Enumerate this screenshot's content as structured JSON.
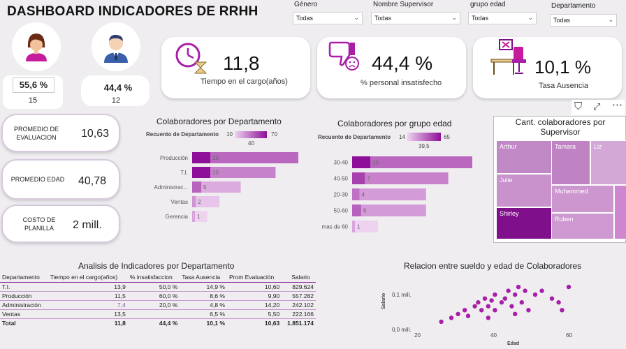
{
  "title": "DASHBOARD INDICADORES DE RRHH",
  "slicers": [
    {
      "label": "Género",
      "value": "Todas"
    },
    {
      "label": "Nombre Supervisor",
      "value": "Todas"
    },
    {
      "label": "grupo edad",
      "value": "Todas"
    },
    {
      "label": "Departamento",
      "value": "Todas"
    }
  ],
  "gender": {
    "female": {
      "pct": "55,6 %",
      "count": "15"
    },
    "male": {
      "pct": "44,4 %",
      "count": "12"
    }
  },
  "kpis": [
    {
      "value": "11,8",
      "label": "Tiempo en el cargo(años)",
      "icon": "hourglass-clock-icon"
    },
    {
      "value": "44,4 %",
      "label": "% personal insatisfecho",
      "icon": "thumbs-down-icon"
    },
    {
      "value": "10,1 %",
      "label": "Tasa Ausencia",
      "icon": "empty-desk-icon"
    }
  ],
  "side_kpis": [
    {
      "label": "PROMEDIO DE EVALUACION",
      "value": "10,63"
    },
    {
      "label": "PROMEDIO EDAD",
      "value": "40,78"
    },
    {
      "label": "COSTO DE PLANILLA",
      "value": "2 mill."
    }
  ],
  "dept_chart": {
    "title": "Colaboradores por Departamento",
    "legend_title": "Recuento de Departamento",
    "legend_min": "10",
    "legend_mid": "40",
    "legend_max": "70"
  },
  "age_chart": {
    "title": "Colaboradores por grupo edad",
    "legend_title": "Recuento de Departamento",
    "legend_min": "14",
    "legend_mid": "39,5",
    "legend_max": "65"
  },
  "treemap": {
    "title": "Cant. colaboradores por Supervisor",
    "cells": [
      "Arthur",
      "Tamara",
      "Liz",
      "Julie",
      "Muhammed",
      "Shirley",
      "Ruben"
    ]
  },
  "table": {
    "title": "Analisis de Indicadores por Departamento",
    "headers": [
      "Departamento",
      "Tiempo en el cargo(años)",
      "% insatisfaccion",
      "Tasa Ausencia",
      "Prom Evaluación",
      "Salario"
    ],
    "rows": [
      [
        "T.I.",
        "13,9",
        "50,0 %",
        "14,9 %",
        "10,60",
        "829.624"
      ],
      [
        "Producción",
        "11,5",
        "60,0 %",
        "8,6 %",
        "9,90",
        "557.282"
      ],
      [
        "Administración",
        "7,4",
        "20,0 %",
        "4,8 %",
        "14,20",
        "242.102"
      ],
      [
        "Ventas",
        "13,5",
        "",
        "6,5 %",
        "5,50",
        "222.166"
      ]
    ],
    "total": [
      "Total",
      "11,8",
      "44,4 %",
      "10,1 %",
      "10,63",
      "1.851.174"
    ]
  },
  "scatter": {
    "title": "Relacion entre sueldo y edad de Colaboradores",
    "xlabel": "Edad",
    "ylabel": "Salario",
    "xticks": [
      "20",
      "40",
      "60"
    ],
    "yticks": [
      "0,1 mill.",
      "0,0 mill."
    ]
  },
  "colors": {
    "accent": "#a71ea7",
    "dark": "#7b0f86",
    "light": "#e2b5e4"
  },
  "chart_data": [
    {
      "type": "bar",
      "title": "Colaboradores por Departamento",
      "categories": [
        "Producción",
        "T.I.",
        "Administrac...",
        "Ventas",
        "Gerencia"
      ],
      "values": [
        10,
        10,
        5,
        2,
        1
      ],
      "series": [
        {
          "name": "Recuento de Departamento",
          "values": [
            70,
            55,
            32,
            18,
            10
          ]
        }
      ]
    },
    {
      "type": "bar",
      "title": "Colaboradores por grupo edad",
      "categories": [
        "30-40",
        "40-50",
        "20-30",
        "50-60",
        "mas de 60"
      ],
      "values": [
        10,
        7,
        4,
        5,
        1
      ],
      "series": [
        {
          "name": "Recuento de Departamento",
          "values": [
            65,
            52,
            40,
            40,
            14
          ]
        }
      ]
    },
    {
      "type": "scatter",
      "title": "Relacion entre sueldo y edad de Colaboradores",
      "xlabel": "Edad",
      "ylabel": "Salario",
      "xlim": [
        15,
        65
      ],
      "ylim": [
        0,
        0.13
      ],
      "x": [
        25,
        27,
        29,
        30,
        32,
        33,
        34,
        35,
        36,
        37,
        38,
        38,
        40,
        41,
        42,
        43,
        44,
        45,
        46,
        47,
        48,
        50,
        52,
        55,
        57,
        60,
        22,
        36,
        44,
        58
      ],
      "y": [
        0.03,
        0.04,
        0.05,
        0.035,
        0.06,
        0.07,
        0.05,
        0.08,
        0.06,
        0.075,
        0.09,
        0.05,
        0.07,
        0.08,
        0.1,
        0.06,
        0.09,
        0.11,
        0.07,
        0.1,
        0.05,
        0.09,
        0.1,
        0.08,
        0.07,
        0.11,
        0.02,
        0.03,
        0.04,
        0.05
      ]
    }
  ]
}
